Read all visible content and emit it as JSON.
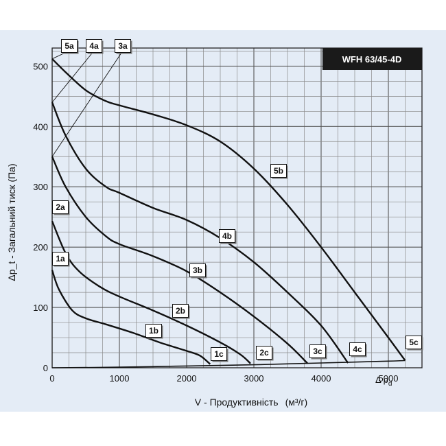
{
  "chart_data": {
    "type": "line",
    "title": "WFH 63/45-4D",
    "xlabel": "V - Продуктивність",
    "xunit": "(м³/г)",
    "ylabel": "Δp_t - Загальний тиск (Па)",
    "xlim": [
      0,
      5500
    ],
    "ylim": [
      0,
      530
    ],
    "xticks": [
      0,
      1000,
      2000,
      3000,
      4000,
      5000
    ],
    "yticks": [
      0,
      100,
      200,
      300,
      400,
      500
    ],
    "grid": true,
    "series": [
      {
        "name": "1",
        "points": [
          [
            0,
            162
          ],
          [
            100,
            130
          ],
          [
            300,
            95
          ],
          [
            500,
            82
          ],
          [
            800,
            72
          ],
          [
            1200,
            58
          ],
          [
            1600,
            42
          ],
          [
            2000,
            28
          ],
          [
            2200,
            20
          ],
          [
            2350,
            6
          ]
        ]
      },
      {
        "name": "2",
        "points": [
          [
            0,
            243
          ],
          [
            200,
            190
          ],
          [
            400,
            160
          ],
          [
            700,
            135
          ],
          [
            1000,
            118
          ],
          [
            1500,
            95
          ],
          [
            2000,
            70
          ],
          [
            2500,
            42
          ],
          [
            2800,
            22
          ],
          [
            2950,
            7
          ]
        ]
      },
      {
        "name": "3",
        "points": [
          [
            0,
            350
          ],
          [
            200,
            300
          ],
          [
            500,
            250
          ],
          [
            800,
            218
          ],
          [
            1000,
            205
          ],
          [
            1500,
            185
          ],
          [
            2000,
            160
          ],
          [
            2500,
            125
          ],
          [
            3000,
            85
          ],
          [
            3500,
            40
          ],
          [
            3800,
            7
          ]
        ]
      },
      {
        "name": "4",
        "points": [
          [
            0,
            440
          ],
          [
            200,
            385
          ],
          [
            500,
            330
          ],
          [
            800,
            300
          ],
          [
            1000,
            290
          ],
          [
            1500,
            265
          ],
          [
            2000,
            245
          ],
          [
            2500,
            215
          ],
          [
            3000,
            175
          ],
          [
            3500,
            125
          ],
          [
            4000,
            70
          ],
          [
            4400,
            8
          ]
        ]
      },
      {
        "name": "5",
        "points": [
          [
            0,
            512
          ],
          [
            200,
            490
          ],
          [
            500,
            460
          ],
          [
            800,
            442
          ],
          [
            1000,
            435
          ],
          [
            1500,
            420
          ],
          [
            2000,
            402
          ],
          [
            2500,
            375
          ],
          [
            3000,
            330
          ],
          [
            3500,
            270
          ],
          [
            4000,
            200
          ],
          [
            4500,
            125
          ],
          [
            5000,
            50
          ],
          [
            5250,
            12
          ]
        ]
      },
      {
        "name": "Δp_d",
        "points": [
          [
            0,
            0
          ],
          [
            1000,
            1
          ],
          [
            2000,
            3
          ],
          [
            3000,
            5
          ],
          [
            4000,
            8
          ],
          [
            5000,
            11
          ],
          [
            5250,
            12
          ]
        ]
      }
    ],
    "annotations": [
      "1a",
      "1b",
      "1c",
      "2a",
      "2b",
      "2c",
      "3a",
      "3b",
      "3c",
      "4a",
      "4b",
      "4c",
      "5a",
      "5b",
      "5c",
      "Δp_d"
    ]
  },
  "pd_label": {
    "main": "Δ p",
    "sub": "d"
  }
}
